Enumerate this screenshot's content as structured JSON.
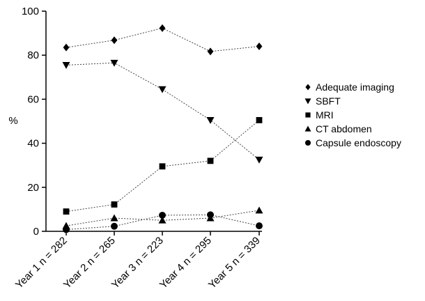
{
  "chart_data": {
    "type": "line",
    "title": "",
    "xlabel": "",
    "ylabel": "%",
    "ylim": [
      0,
      100
    ],
    "yticks": [
      0,
      20,
      40,
      60,
      80,
      100
    ],
    "categories": [
      "Year 1 n = 282",
      "Year 2 n = 265",
      "Year 3 n = 223",
      "Year 4 n = 295",
      "Year 5 n = 339"
    ],
    "grid": false,
    "legend_position": "right",
    "series": [
      {
        "name": "Adequate imaging",
        "marker": "diamond",
        "values": [
          83.5,
          86.8,
          92.3,
          81.7,
          84.0
        ]
      },
      {
        "name": "SBFT",
        "marker": "triangle-down",
        "values": [
          75.5,
          76.5,
          64.5,
          50.5,
          32.5
        ]
      },
      {
        "name": "MRI",
        "marker": "square",
        "values": [
          9.0,
          12.2,
          29.5,
          32.0,
          50.5
        ]
      },
      {
        "name": "CT abdomen",
        "marker": "triangle-up",
        "values": [
          2.5,
          6.0,
          5.0,
          6.0,
          9.5
        ]
      },
      {
        "name": "Capsule endoscopy",
        "marker": "circle",
        "values": [
          0.8,
          2.3,
          7.3,
          7.5,
          2.5
        ]
      }
    ]
  }
}
